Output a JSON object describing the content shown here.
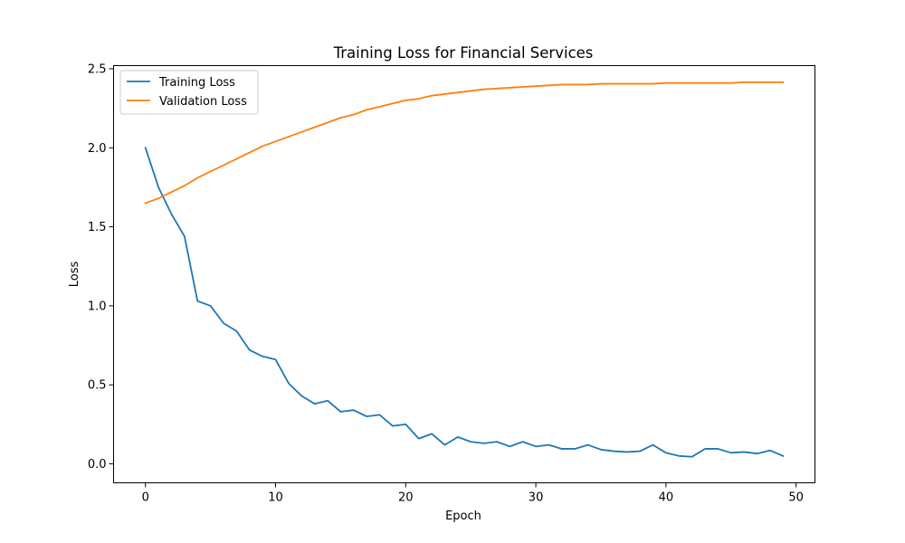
{
  "chart_data": {
    "type": "line",
    "title": "Training Loss for Financial Services",
    "xlabel": "Epoch",
    "ylabel": "Loss",
    "xlim": [
      -2.45,
      51.45
    ],
    "ylim": [
      -0.12,
      2.52
    ],
    "xticks": [
      0,
      10,
      20,
      30,
      40,
      50
    ],
    "xtick_labels": [
      "0",
      "10",
      "20",
      "30",
      "40",
      "50"
    ],
    "yticks": [
      0.0,
      0.5,
      1.0,
      1.5,
      2.0,
      2.5
    ],
    "ytick_labels": [
      "0.0",
      "0.5",
      "1.0",
      "1.5",
      "2.0",
      "2.5"
    ],
    "grid": false,
    "legend": "top-left",
    "x": [
      0,
      1,
      2,
      3,
      4,
      5,
      6,
      7,
      8,
      9,
      10,
      11,
      12,
      13,
      14,
      15,
      16,
      17,
      18,
      19,
      20,
      21,
      22,
      23,
      24,
      25,
      26,
      27,
      28,
      29,
      30,
      31,
      32,
      33,
      34,
      35,
      36,
      37,
      38,
      39,
      40,
      41,
      42,
      43,
      44,
      45,
      46,
      47,
      48,
      49
    ],
    "series": [
      {
        "name": "Training Loss",
        "color": "#1f77b4",
        "values": [
          2.0,
          1.75,
          1.58,
          1.44,
          1.03,
          1.0,
          0.89,
          0.84,
          0.72,
          0.68,
          0.66,
          0.51,
          0.43,
          0.38,
          0.4,
          0.33,
          0.34,
          0.3,
          0.31,
          0.24,
          0.25,
          0.16,
          0.19,
          0.12,
          0.17,
          0.14,
          0.13,
          0.14,
          0.11,
          0.14,
          0.11,
          0.12,
          0.095,
          0.095,
          0.12,
          0.09,
          0.08,
          0.075,
          0.08,
          0.12,
          0.07,
          0.05,
          0.045,
          0.095,
          0.095,
          0.07,
          0.075,
          0.065,
          0.085,
          0.05
        ]
      },
      {
        "name": "Validation Loss",
        "color": "#ff7f0e",
        "values": [
          1.65,
          1.68,
          1.72,
          1.76,
          1.81,
          1.85,
          1.89,
          1.93,
          1.97,
          2.01,
          2.04,
          2.07,
          2.1,
          2.13,
          2.16,
          2.19,
          2.21,
          2.24,
          2.26,
          2.28,
          2.3,
          2.31,
          2.33,
          2.34,
          2.35,
          2.36,
          2.37,
          2.375,
          2.38,
          2.385,
          2.39,
          2.395,
          2.4,
          2.4,
          2.4,
          2.405,
          2.405,
          2.405,
          2.405,
          2.405,
          2.41,
          2.41,
          2.41,
          2.41,
          2.41,
          2.41,
          2.415,
          2.415,
          2.415,
          2.415
        ]
      }
    ]
  }
}
